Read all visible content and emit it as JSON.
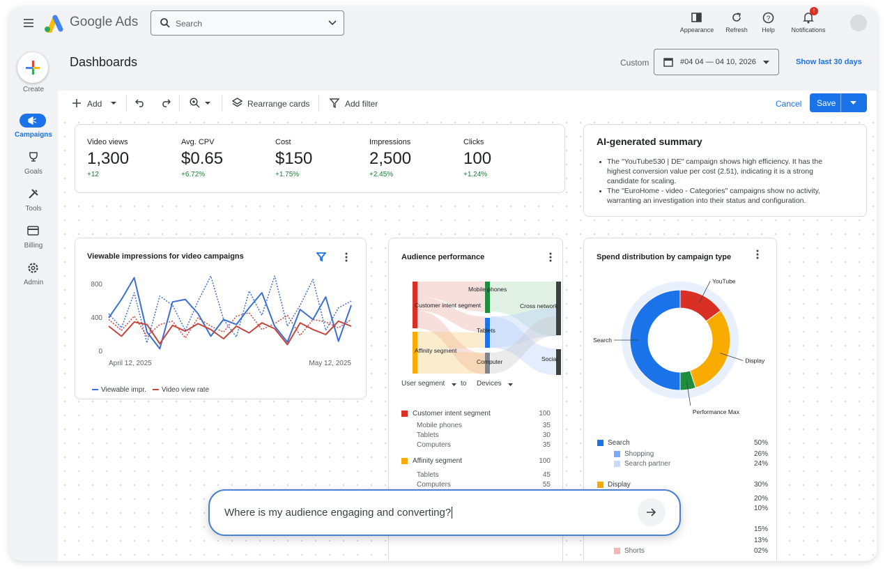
{
  "header": {
    "brand": "Google Ads",
    "search_placeholder": "Search",
    "actions": [
      "Appearance",
      "Refresh",
      "Help",
      "Notifications"
    ],
    "notification_badge": "!"
  },
  "nav": [
    "Create",
    "Campaigns",
    "Goals",
    "Tools",
    "Billing",
    "Admin"
  ],
  "page": {
    "title": "Dashboards",
    "range_label": "Custom",
    "date_range": "#04 04 — 04 10, 2026",
    "show_last": "Show last 30 days"
  },
  "toolbar": {
    "add": "Add",
    "rearrange": "Rearrange cards",
    "filter": "Add filter",
    "cancel": "Cancel",
    "save": "Save"
  },
  "metrics": [
    {
      "label": "Video views",
      "value": "1,300",
      "change": "+12"
    },
    {
      "label": "Avg. CPV",
      "value": "$0.65",
      "change": "+6.72%"
    },
    {
      "label": "Cost",
      "value": "$150",
      "change": "+1.75%"
    },
    {
      "label": "Impressions",
      "value": "2,500",
      "change": "+2.45%"
    },
    {
      "label": "Clicks",
      "value": "100",
      "change": "+1.24%"
    }
  ],
  "summary": {
    "title": "AI-generated summary",
    "bullets": [
      "The \"YouTube530 | DE\" campaign shows high efficiency. It has the highest conversion value per cost (2.51), indicating it is a strong candidate for scaling.",
      "The \"EuroHome - video - Categories\" campaigns show no activity, warranting an investigation into their status and configuration."
    ]
  },
  "line_chart": {
    "type": "line",
    "title": "Viewable impressions for video campaigns",
    "categories": [
      "April 12, 2025",
      null,
      null,
      null,
      null,
      null,
      null,
      null,
      null,
      null,
      null,
      null,
      null,
      null,
      null,
      null,
      null,
      null,
      null,
      "May 12, 2025"
    ],
    "ylim": [
      0,
      950
    ],
    "yticks": [
      0,
      400,
      800
    ],
    "series": [
      {
        "name": "Viewable impr.",
        "color": "#3b6fd1",
        "values": [
          400,
          620,
          880,
          230,
          30,
          590,
          620,
          450,
          180,
          380,
          320,
          520,
          700,
          300,
          110,
          500,
          380,
          650,
          120,
          550
        ],
        "previous": [
          450,
          280,
          700,
          100,
          660,
          550,
          250,
          600,
          900,
          380,
          170,
          720,
          430,
          900,
          300,
          550,
          860,
          250,
          520,
          600
        ]
      },
      {
        "name": "Video view rate",
        "color": "#c5443d",
        "values": [
          300,
          180,
          350,
          320,
          90,
          310,
          240,
          330,
          260,
          150,
          300,
          220,
          340,
          270,
          80,
          340,
          260,
          200,
          360,
          300
        ],
        "previous": [
          380,
          250,
          420,
          180,
          320,
          360,
          160,
          400,
          300,
          230,
          420,
          460,
          260,
          330,
          430,
          190,
          380,
          350,
          280,
          380
        ]
      }
    ]
  },
  "audience": {
    "title": "Audience performance",
    "sankey_labels": [
      "Mobile phones",
      "Customer intent segment",
      "Cross network",
      "Tablets",
      "Affinity segment",
      "Social",
      "Computer"
    ],
    "selectors": [
      "User segment",
      "to",
      "Devices"
    ],
    "rows": [
      {
        "label": "Customer intent segment",
        "value": 100,
        "color": "#d93025"
      },
      {
        "label": "Mobile phones",
        "value": 35
      },
      {
        "label": "Tablets",
        "value": 30
      },
      {
        "label": "Computers",
        "value": 35
      },
      {
        "label": "Affinity segment",
        "value": 100,
        "color": "#f9ab00"
      },
      {
        "label": "Tablets",
        "value": 45
      },
      {
        "label": "Computers",
        "value": 55
      }
    ]
  },
  "spend": {
    "title": "Spend distribution by campaign type",
    "donut": {
      "type": "pie",
      "segments": [
        {
          "label": "YouTube",
          "value": 15,
          "color": "#d93025"
        },
        {
          "label": "Display",
          "value": 30,
          "color": "#f9ab00"
        },
        {
          "label": "Performance Max",
          "value": 5,
          "color": "#1e8e3e"
        },
        {
          "label": "Search",
          "value": 50,
          "color": "#1a73e8"
        }
      ]
    },
    "legend": [
      {
        "label": "Search",
        "share": "50%",
        "color": "#1a73e8",
        "level": 0
      },
      {
        "label": "Shopping",
        "share": "26%",
        "color": "#7baaf7",
        "level": 1
      },
      {
        "label": "Search partner",
        "share": "24%",
        "color": "#c6dafc",
        "level": 1
      },
      {
        "label": "Display",
        "share": "30%",
        "color": "#f9ab00",
        "level": 0
      },
      {
        "label": null,
        "share": "20%",
        "level": 1
      },
      {
        "label": null,
        "share": "10%",
        "level": 1
      },
      {
        "label": null,
        "share": "15%",
        "level": 0
      },
      {
        "label": null,
        "share": "13%",
        "level": 1
      },
      {
        "label": "Shorts",
        "share": "02%",
        "color": "#f4b6b2",
        "level": 1
      }
    ]
  },
  "prompt": {
    "text": "Where is my audience engaging and converting?"
  }
}
